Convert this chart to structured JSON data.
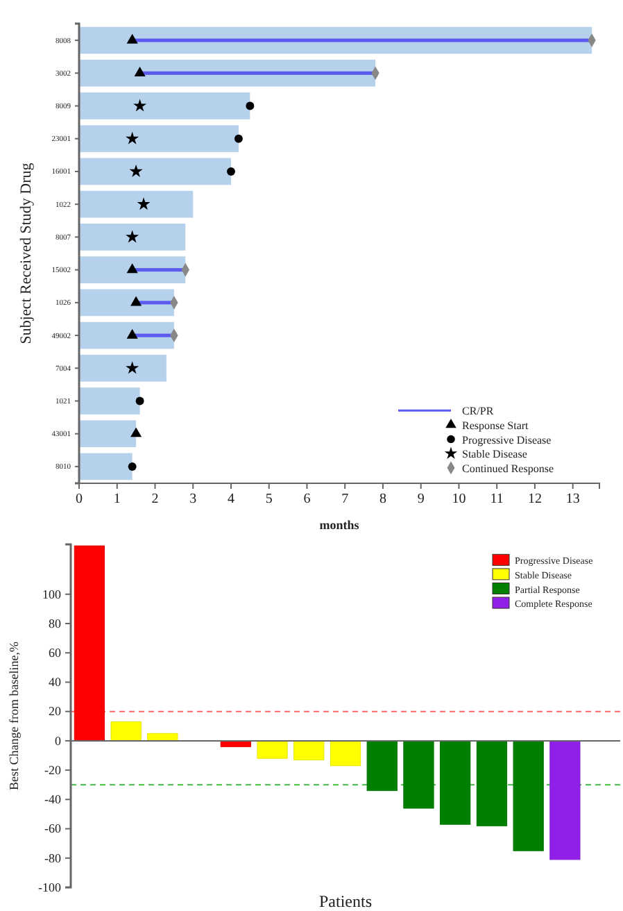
{
  "chart_data": [
    {
      "type": "bar",
      "orientation": "horizontal",
      "ylabel": "Subject Received Study Drug",
      "xlabel": "months",
      "legend": "bottom right",
      "xlim": [
        0,
        13.7
      ],
      "xticks": [
        0,
        1,
        2,
        3,
        4,
        5,
        6,
        7,
        8,
        9,
        10,
        11,
        12,
        13
      ],
      "categories": [
        "8008",
        "3002",
        "8009",
        "23001",
        "16001",
        "1022",
        "8007",
        "15002",
        "1026",
        "49002",
        "7004",
        "1021",
        "43001",
        "8010"
      ],
      "series": [
        {
          "type": "bar",
          "color": "#b6d1ec",
          "values": [
            13.5,
            7.8,
            4.5,
            4.2,
            4.0,
            3.0,
            2.8,
            2.8,
            2.5,
            2.5,
            2.3,
            1.6,
            1.5,
            1.4
          ]
        },
        {
          "type": "bar",
          "name": "CR/PR",
          "color": "#5a5af0",
          "base": [
            1.4,
            1.6,
            null,
            null,
            null,
            null,
            null,
            1.4,
            1.5,
            1.4,
            null,
            null,
            null,
            null
          ],
          "values": [
            12.1,
            6.2,
            null,
            null,
            null,
            null,
            null,
            1.4,
            1.0,
            1.1,
            null,
            null,
            null,
            null
          ]
        },
        {
          "type": "scatter",
          "name": "Response Start",
          "marker": "triangle",
          "color": "#000000",
          "values": [
            1.4,
            1.6,
            null,
            null,
            null,
            null,
            null,
            1.4,
            1.5,
            1.4,
            null,
            null,
            1.5,
            null
          ]
        },
        {
          "type": "scatter",
          "name": "Progressive Disease",
          "marker": "circle",
          "color": "#000000",
          "values": [
            null,
            null,
            4.5,
            4.2,
            4.0,
            null,
            null,
            null,
            null,
            null,
            null,
            1.6,
            null,
            1.4
          ]
        },
        {
          "type": "scatter",
          "name": "Stable Disease",
          "marker": "star",
          "color": "#000000",
          "values": [
            null,
            null,
            1.6,
            1.4,
            1.5,
            1.7,
            1.4,
            null,
            null,
            null,
            1.4,
            null,
            null,
            null
          ]
        },
        {
          "type": "scatter",
          "name": "Continued Response",
          "marker": "diamond",
          "color": "#888888",
          "values": [
            13.5,
            7.8,
            null,
            null,
            null,
            null,
            null,
            2.8,
            2.5,
            2.5,
            null,
            null,
            null,
            null
          ]
        }
      ]
    },
    {
      "type": "bar",
      "xlabel": "Patients",
      "ylabel": "Best Change from baseline,%",
      "legend": "top right",
      "ylim": [
        -100,
        134
      ],
      "yticks": [
        -100,
        -80,
        -60,
        -40,
        -20,
        0,
        20,
        40,
        60,
        80,
        100
      ],
      "categories": [
        null,
        null,
        null,
        null,
        null,
        null,
        null,
        null,
        null,
        null,
        null,
        null,
        null,
        null,
        null
      ],
      "ref_lines": [
        {
          "axis": "y",
          "value": 20,
          "color": "#ff6666",
          "line_style": "dashed"
        },
        {
          "axis": "y",
          "value": -30,
          "color": "#44bb44",
          "line_style": "dashed"
        }
      ],
      "series": [
        {
          "name": "Progressive Disease",
          "color": "#ff0000",
          "values": [
            133,
            null,
            null,
            null,
            -4,
            null,
            null,
            null,
            null,
            null,
            null,
            null,
            null,
            null,
            null
          ]
        },
        {
          "name": "Stable Disease",
          "color": "#ffff00",
          "values": [
            null,
            13,
            5,
            null,
            null,
            -12,
            -13,
            -17,
            null,
            null,
            null,
            null,
            null,
            null,
            null
          ]
        },
        {
          "name": "Partial Response",
          "color": "#008000",
          "values": [
            null,
            null,
            null,
            null,
            null,
            null,
            null,
            null,
            -34,
            -46,
            -57,
            -58,
            -75,
            null,
            null
          ]
        },
        {
          "name": "Complete Response",
          "color": "#9020e8",
          "values": [
            null,
            null,
            null,
            null,
            null,
            null,
            null,
            null,
            null,
            null,
            null,
            null,
            null,
            -81,
            null
          ]
        }
      ]
    }
  ]
}
